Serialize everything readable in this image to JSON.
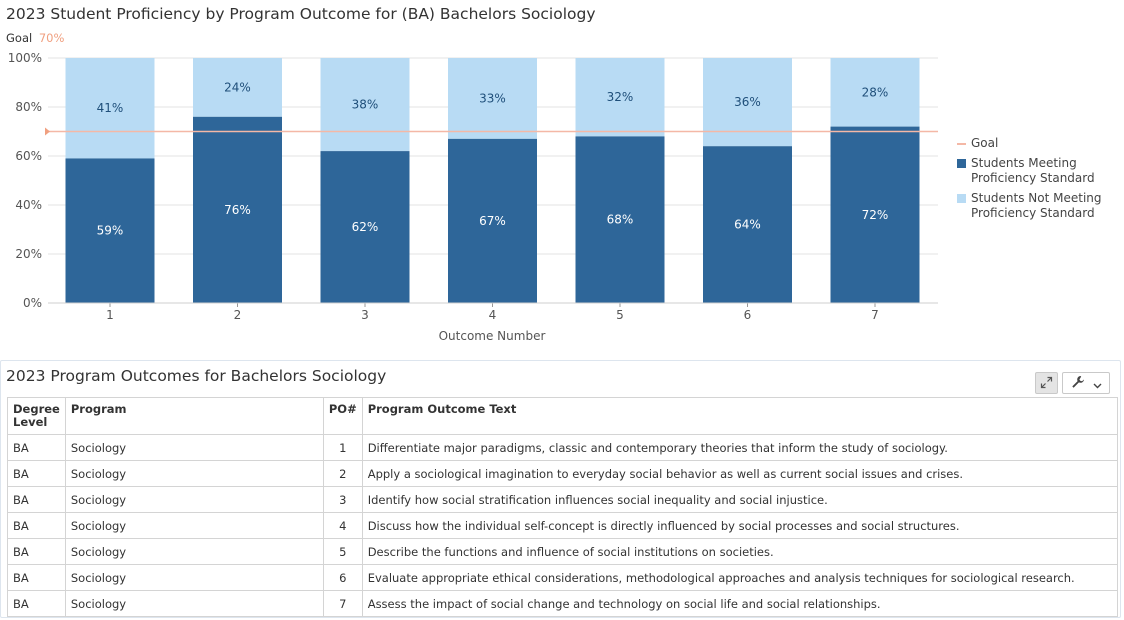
{
  "chart": {
    "title": "2023 Student Proficiency by Program Outcome for (BA) Bachelors Sociology",
    "goal_label": "Goal",
    "goal_value_text": "70%",
    "legend": {
      "goal": "Goal",
      "meeting": [
        "Students Meeting",
        "Proficiency Standard"
      ],
      "not_meeting": [
        "Students Not Meeting",
        "Proficiency Standard"
      ]
    },
    "colors": {
      "meeting": "#2e6699",
      "not_meeting": "#b8dbf4",
      "goal_line": "#f4b8a6",
      "goal_text": "#f0a080",
      "meeting_text": "#ffffff",
      "not_meeting_text": "#1f4f7a"
    }
  },
  "chart_data": {
    "type": "bar",
    "stacked": true,
    "categories": [
      "1",
      "2",
      "3",
      "4",
      "5",
      "6",
      "7"
    ],
    "series": [
      {
        "name": "Students Meeting Proficiency Standard",
        "values": [
          59,
          76,
          62,
          67,
          68,
          64,
          72
        ]
      },
      {
        "name": "Students Not Meeting Proficiency Standard",
        "values": [
          41,
          24,
          38,
          33,
          32,
          36,
          28
        ]
      }
    ],
    "goal": 70,
    "xlabel": "Outcome Number",
    "ylabel": "",
    "ylim": [
      0,
      100
    ],
    "yticks": [
      "0%",
      "20%",
      "40%",
      "60%",
      "80%",
      "100%"
    ],
    "legend_position": "right",
    "grid": true
  },
  "table": {
    "title": "2023 Program Outcomes for Bachelors Sociology",
    "headers": [
      "Degree Level",
      "Program",
      "PO#",
      "Program Outcome Text"
    ],
    "rows": [
      [
        "BA",
        "Sociology",
        "1",
        "Differentiate major paradigms, classic and contemporary theories that inform the study of sociology."
      ],
      [
        "BA",
        "Sociology",
        "2",
        "Apply a sociological imagination to everyday social behavior as well as current social issues and crises."
      ],
      [
        "BA",
        "Sociology",
        "3",
        "Identify how social stratification influences social inequality and social injustice."
      ],
      [
        "BA",
        "Sociology",
        "4",
        "Discuss how the individual self-concept is directly influenced by social processes and social structures."
      ],
      [
        "BA",
        "Sociology",
        "5",
        "Describe the functions and influence of social institutions on societies."
      ],
      [
        "BA",
        "Sociology",
        "6",
        "Evaluate appropriate ethical considerations, methodological approaches and analysis techniques for sociological research."
      ],
      [
        "BA",
        "Sociology",
        "7",
        "Assess the impact of social change and technology on social life and social relationships."
      ]
    ]
  },
  "icons": {
    "expand": "expand-icon",
    "wrench": "wrench-icon",
    "chevron": "chevron-down-icon"
  }
}
